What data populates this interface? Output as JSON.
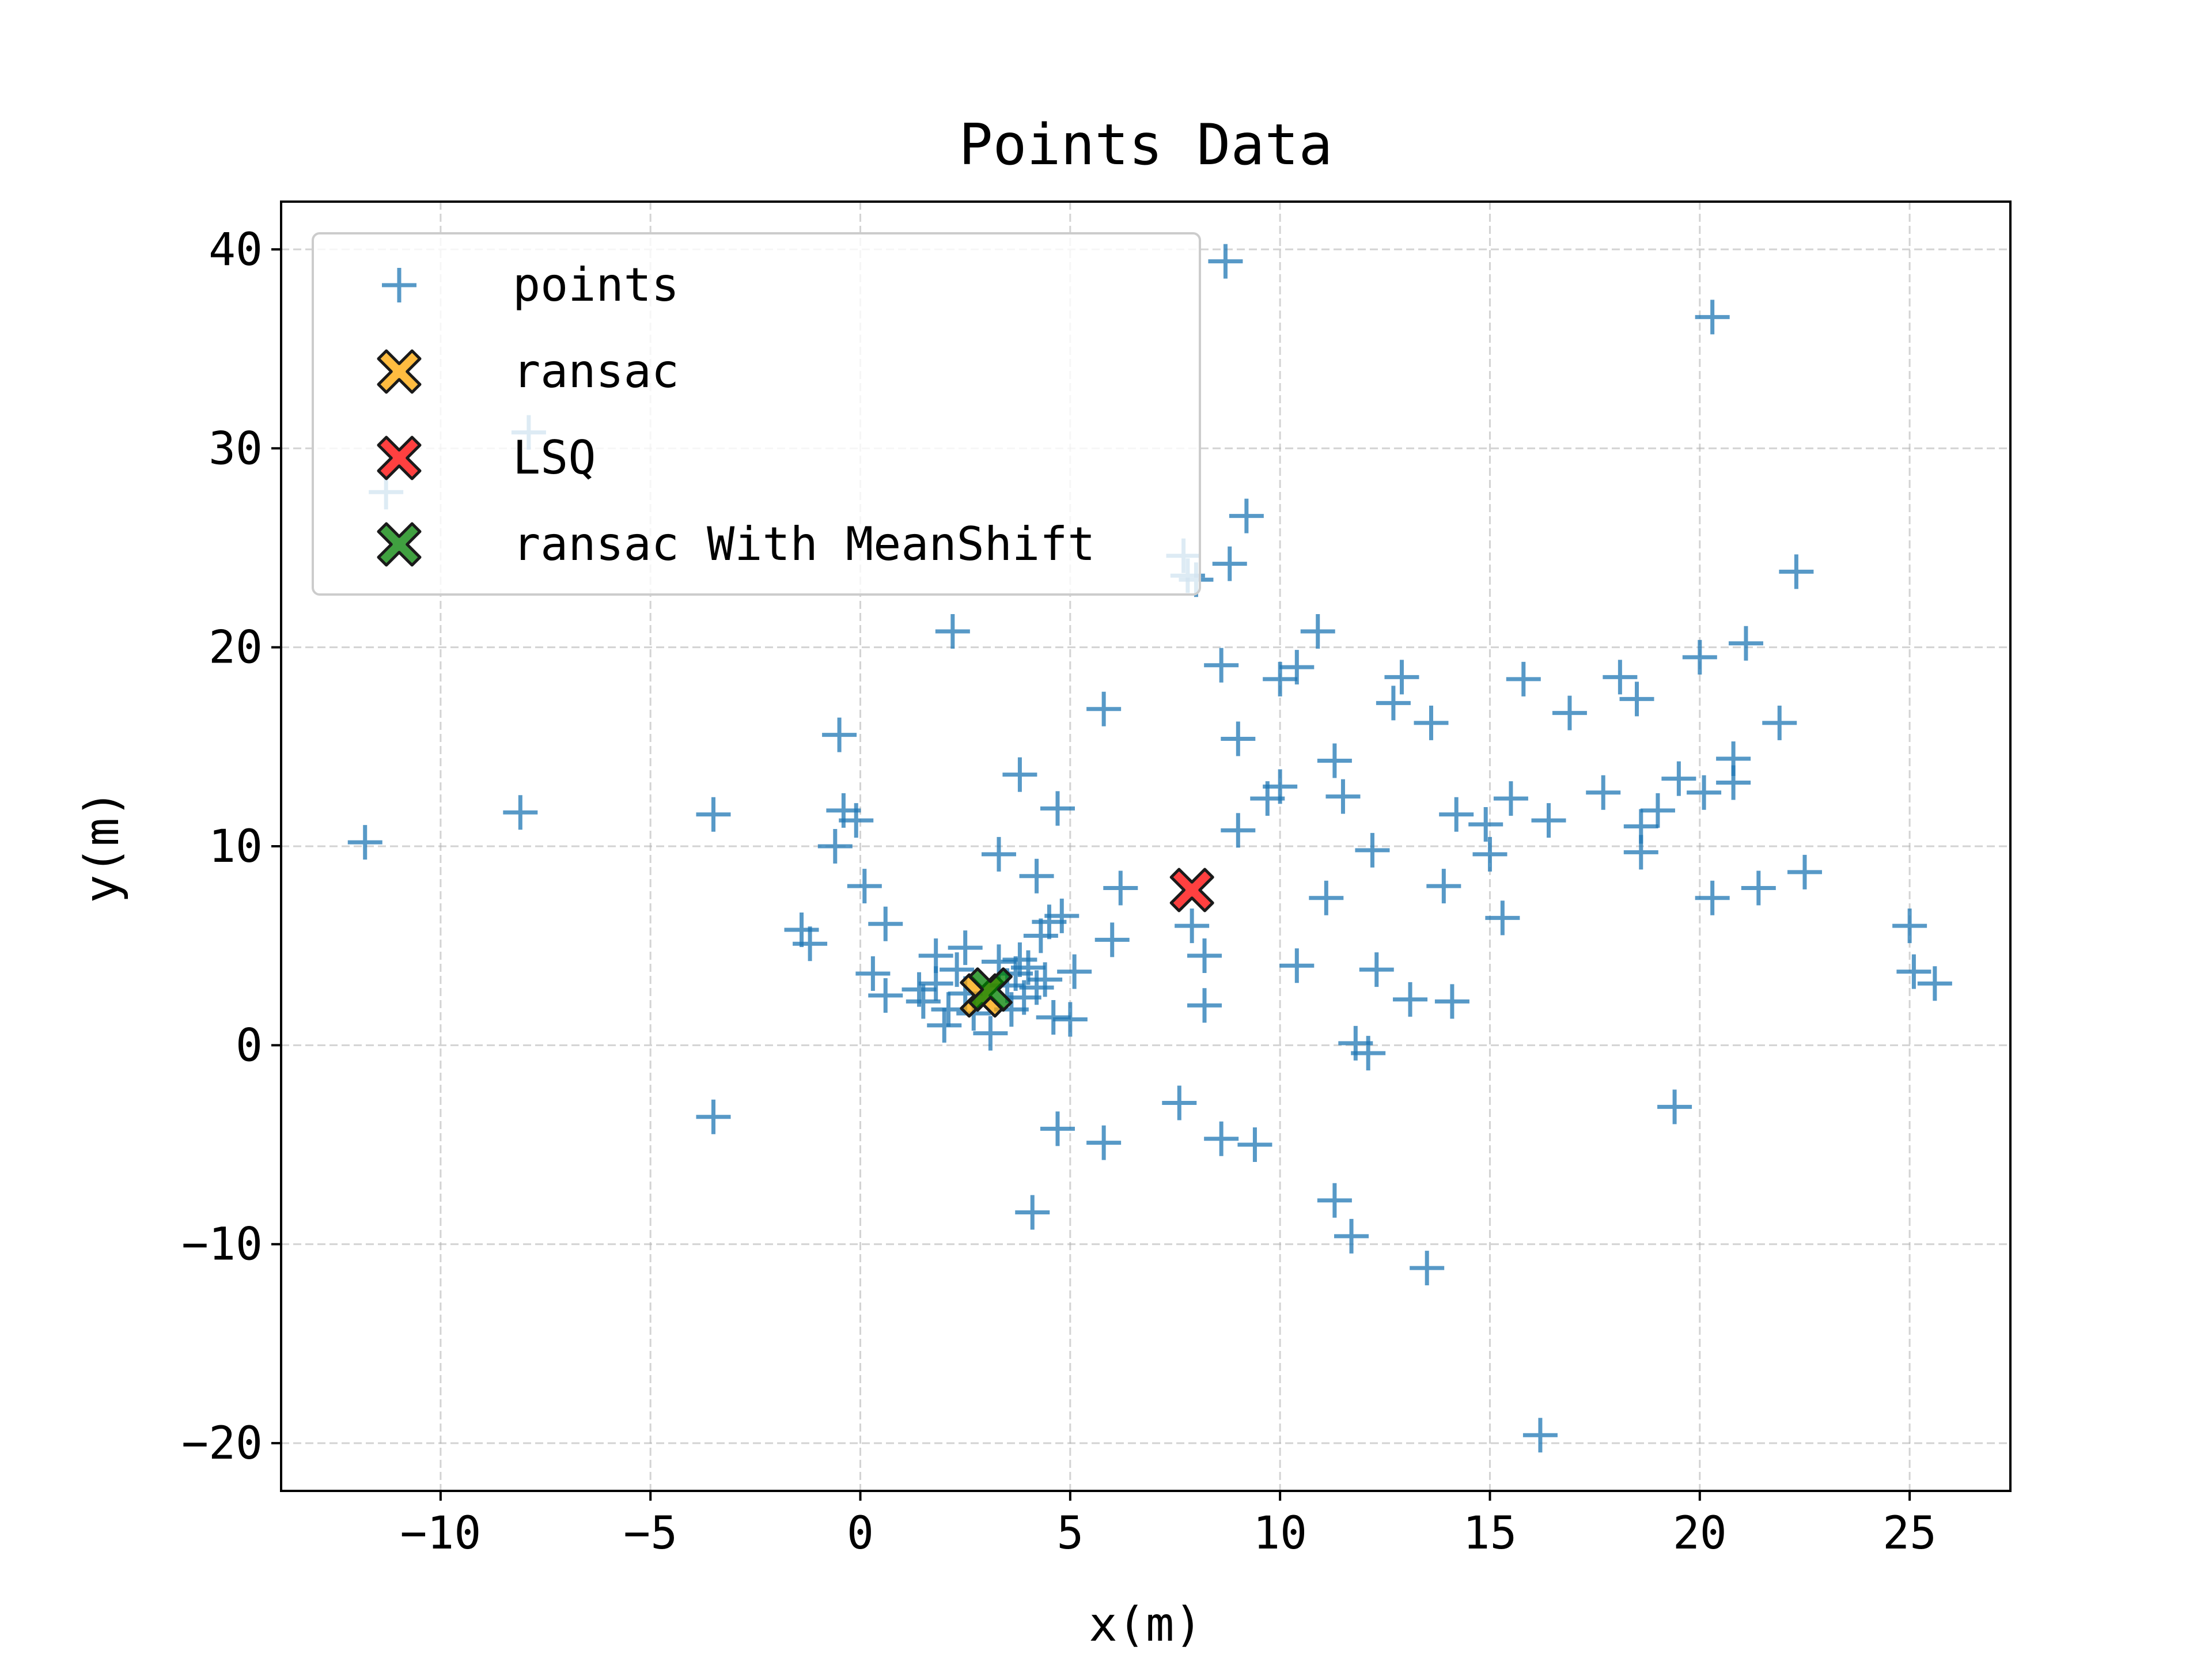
{
  "chart_data": {
    "type": "scatter",
    "title": "Points Data",
    "xlabel": "x(m)",
    "ylabel": "y(m)",
    "xlim": [
      -13.8,
      27.4
    ],
    "ylim": [
      -22.4,
      42.4
    ],
    "xticks": [
      -10,
      -5,
      0,
      5,
      10,
      15,
      20,
      25
    ],
    "xtick_labels": [
      "−10",
      "−5",
      "0",
      "5",
      "10",
      "15",
      "20",
      "25"
    ],
    "yticks": [
      -20,
      -10,
      0,
      10,
      20,
      30,
      40
    ],
    "ytick_labels": [
      "−20",
      "−10",
      "0",
      "10",
      "20",
      "30",
      "40"
    ],
    "grid": true,
    "legend_position": "upper-left",
    "series": [
      {
        "name": "points",
        "marker": "+",
        "color": "#1f77b4",
        "points": [
          [
            -11.8,
            10.2
          ],
          [
            -11.3,
            27.8
          ],
          [
            -8.1,
            11.7
          ],
          [
            -7.9,
            30.8
          ],
          [
            -3.5,
            11.6
          ],
          [
            -3.5,
            -3.6
          ],
          [
            -1.4,
            5.8
          ],
          [
            -1.2,
            5.1
          ],
          [
            -0.6,
            10.0
          ],
          [
            -0.5,
            15.6
          ],
          [
            -0.4,
            11.8
          ],
          [
            -0.1,
            11.3
          ],
          [
            0.1,
            8.0
          ],
          [
            0.3,
            3.6
          ],
          [
            0.6,
            6.1
          ],
          [
            0.6,
            2.5
          ],
          [
            1.4,
            2.8
          ],
          [
            1.5,
            2.2
          ],
          [
            1.8,
            3.1
          ],
          [
            1.8,
            4.5
          ],
          [
            2.0,
            1.0
          ],
          [
            2.1,
            1.8
          ],
          [
            2.2,
            20.8
          ],
          [
            2.3,
            3.8
          ],
          [
            2.5,
            2.6
          ],
          [
            2.5,
            4.9
          ],
          [
            2.7,
            1.6
          ],
          [
            3.1,
            0.6
          ],
          [
            3.3,
            9.6
          ],
          [
            3.3,
            4.2
          ],
          [
            3.5,
            3.0
          ],
          [
            3.6,
            1.8
          ],
          [
            3.7,
            3.6
          ],
          [
            3.8,
            13.6
          ],
          [
            3.8,
            4.3
          ],
          [
            3.9,
            2.4
          ],
          [
            4.0,
            3.9
          ],
          [
            4.1,
            -8.4
          ],
          [
            4.2,
            8.5
          ],
          [
            4.2,
            2.9
          ],
          [
            4.3,
            5.5
          ],
          [
            4.4,
            3.3
          ],
          [
            4.5,
            6.2
          ],
          [
            4.6,
            1.4
          ],
          [
            4.7,
            11.9
          ],
          [
            4.7,
            -4.2
          ],
          [
            4.8,
            6.5
          ],
          [
            5.0,
            1.3
          ],
          [
            5.1,
            3.7
          ],
          [
            5.8,
            16.9
          ],
          [
            5.8,
            -4.9
          ],
          [
            6.0,
            5.3
          ],
          [
            6.2,
            7.9
          ],
          [
            7.6,
            -2.9
          ],
          [
            7.7,
            24.6
          ],
          [
            7.8,
            23.6
          ],
          [
            7.9,
            6.0
          ],
          [
            8.0,
            23.4
          ],
          [
            8.2,
            4.5
          ],
          [
            8.2,
            2.0
          ],
          [
            8.6,
            -4.7
          ],
          [
            8.6,
            19.1
          ],
          [
            8.7,
            39.4
          ],
          [
            8.8,
            24.2
          ],
          [
            9.0,
            15.4
          ],
          [
            9.0,
            10.8
          ],
          [
            9.2,
            26.6
          ],
          [
            9.4,
            -5.0
          ],
          [
            9.7,
            12.4
          ],
          [
            10.0,
            13.0
          ],
          [
            10.0,
            18.4
          ],
          [
            10.4,
            19.0
          ],
          [
            10.4,
            4.0
          ],
          [
            10.9,
            20.8
          ],
          [
            11.1,
            7.4
          ],
          [
            11.3,
            14.3
          ],
          [
            11.3,
            -7.8
          ],
          [
            11.5,
            12.5
          ],
          [
            11.7,
            -9.6
          ],
          [
            11.8,
            0.1
          ],
          [
            12.1,
            -0.4
          ],
          [
            12.2,
            9.8
          ],
          [
            12.3,
            3.8
          ],
          [
            12.7,
            17.2
          ],
          [
            12.9,
            18.5
          ],
          [
            13.1,
            2.3
          ],
          [
            13.5,
            -11.2
          ],
          [
            13.6,
            16.2
          ],
          [
            13.9,
            8.0
          ],
          [
            14.1,
            2.2
          ],
          [
            14.2,
            11.6
          ],
          [
            14.9,
            11.1
          ],
          [
            15.0,
            9.6
          ],
          [
            15.3,
            6.4
          ],
          [
            15.5,
            12.4
          ],
          [
            15.8,
            18.4
          ],
          [
            16.2,
            -19.6
          ],
          [
            16.4,
            11.3
          ],
          [
            16.9,
            16.7
          ],
          [
            17.7,
            12.7
          ],
          [
            18.1,
            18.5
          ],
          [
            18.5,
            17.4
          ],
          [
            18.6,
            11.0
          ],
          [
            18.6,
            9.7
          ],
          [
            19.0,
            11.8
          ],
          [
            19.4,
            -3.1
          ],
          [
            19.5,
            13.4
          ],
          [
            20.0,
            19.5
          ],
          [
            20.1,
            12.7
          ],
          [
            20.3,
            36.6
          ],
          [
            20.3,
            7.4
          ],
          [
            20.8,
            13.2
          ],
          [
            20.8,
            14.4
          ],
          [
            21.1,
            20.2
          ],
          [
            21.4,
            7.9
          ],
          [
            21.9,
            16.2
          ],
          [
            22.3,
            23.8
          ],
          [
            22.5,
            8.7
          ],
          [
            25.0,
            6.0
          ],
          [
            25.1,
            3.7
          ],
          [
            25.6,
            3.1
          ]
        ]
      },
      {
        "name": "ransac",
        "marker": "X",
        "color": "#ffa500",
        "points": [
          [
            2.9,
            2.5
          ]
        ]
      },
      {
        "name": "LSQ",
        "marker": "X",
        "color": "#ff0000",
        "points": [
          [
            7.9,
            7.8
          ]
        ]
      },
      {
        "name": "ransac With MeanShift",
        "marker": "X",
        "color": "#008000",
        "points": [
          [
            3.1,
            2.8
          ]
        ]
      }
    ]
  }
}
